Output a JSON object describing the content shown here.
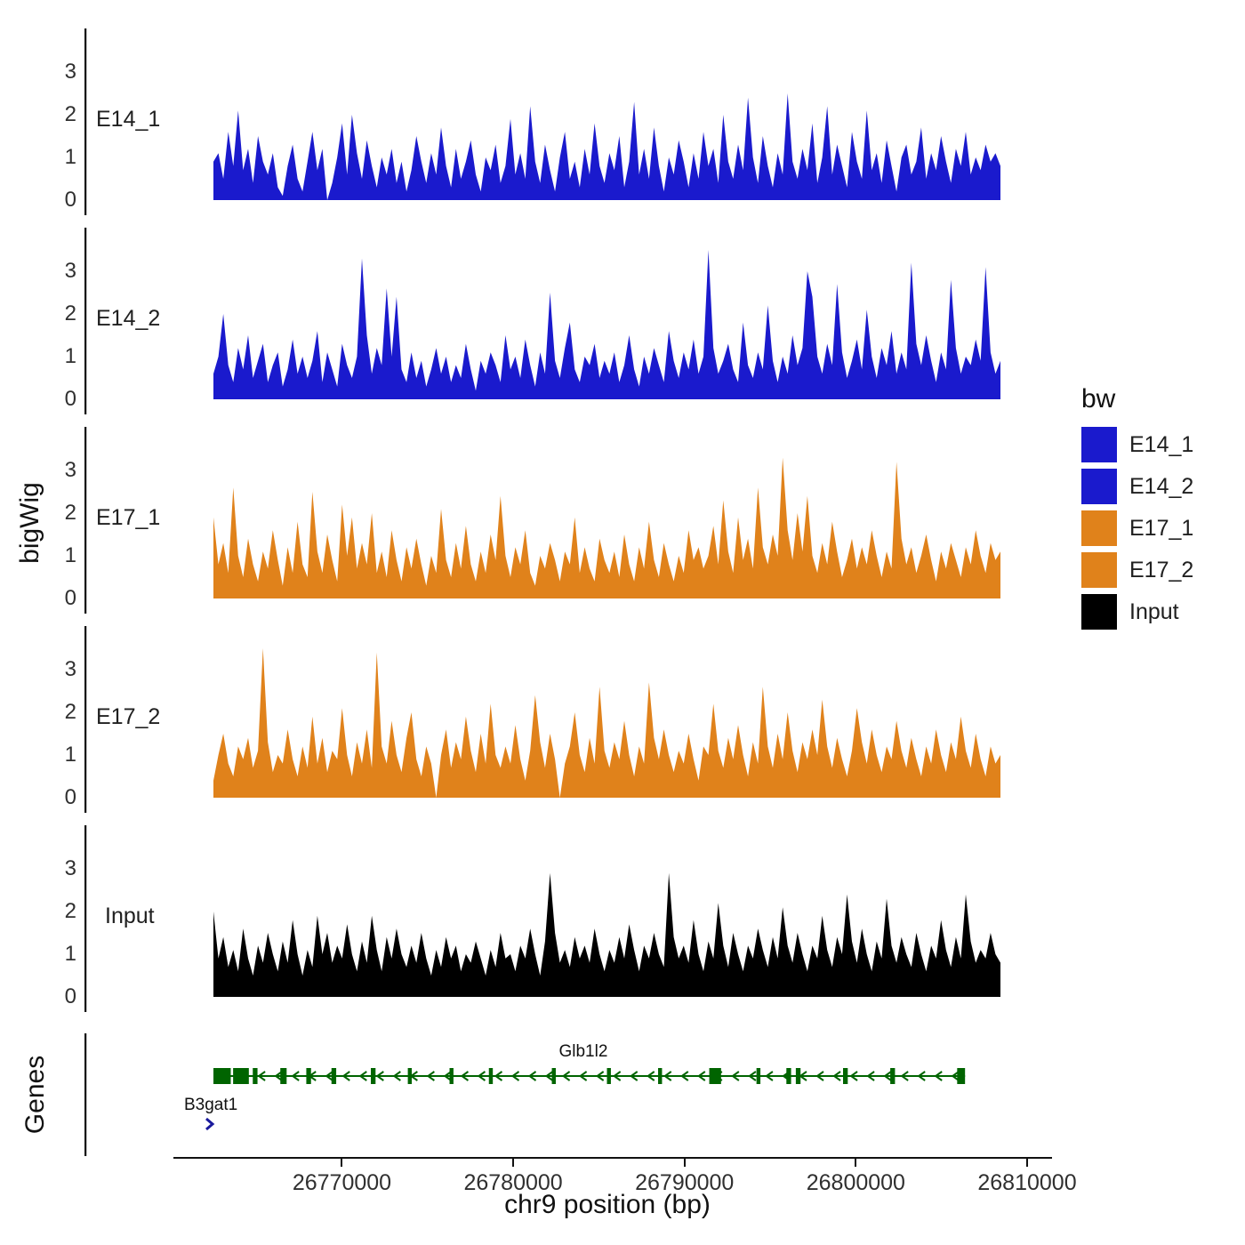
{
  "axes": {
    "y_title": "bigWig",
    "genes_title": "Genes",
    "x_title": "chr9 position (bp)"
  },
  "chart_data": {
    "type": "area",
    "title": "",
    "x_axis": {
      "label": "chr9 position (bp)",
      "bp_min": 26762500,
      "bp_max": 26810000,
      "ticks": [
        26770000,
        26780000,
        26790000,
        26800000,
        26810000
      ]
    },
    "y_axis": {
      "title": "bigWig",
      "ticks": [
        0,
        1,
        2,
        3
      ],
      "ylim": [
        0,
        3.5
      ]
    },
    "legend": {
      "title": "bw",
      "position": "right",
      "items": [
        {
          "label": "E14_1",
          "color": "#1a1acd"
        },
        {
          "label": "E14_2",
          "color": "#1a1acd"
        },
        {
          "label": "E17_1",
          "color": "#e0821b"
        },
        {
          "label": "E17_2",
          "color": "#e0821b"
        },
        {
          "label": "Input",
          "color": "#000000"
        }
      ]
    },
    "tracks": [
      {
        "name": "E14_1",
        "color": "#1a1acd",
        "values": [
          0.9,
          1.1,
          0.5,
          1.6,
          0.8,
          2.1,
          0.7,
          1.2,
          0.4,
          1.5,
          0.9,
          0.6,
          1.1,
          0.3,
          0.1,
          0.8,
          1.3,
          0.5,
          0.2,
          0.9,
          1.6,
          0.7,
          1.2,
          0.0,
          0.4,
          1.0,
          1.8,
          0.6,
          2.0,
          1.1,
          0.5,
          1.4,
          0.8,
          0.3,
          1.0,
          0.6,
          1.2,
          0.4,
          0.9,
          0.2,
          0.7,
          1.5,
          0.9,
          0.4,
          1.1,
          0.6,
          1.7,
          0.8,
          0.3,
          1.2,
          0.5,
          0.9,
          1.4,
          0.6,
          0.2,
          1.0,
          0.7,
          1.3,
          0.4,
          0.8,
          1.9,
          0.6,
          1.1,
          0.5,
          2.2,
          0.9,
          0.4,
          1.3,
          0.7,
          0.2,
          1.0,
          1.6,
          0.5,
          0.9,
          0.3,
          1.2,
          0.6,
          1.8,
          0.8,
          0.4,
          1.1,
          0.7,
          1.5,
          0.3,
          0.9,
          2.3,
          0.6,
          1.2,
          0.5,
          1.7,
          0.8,
          0.2,
          1.0,
          0.6,
          1.4,
          0.9,
          0.3,
          1.1,
          0.5,
          1.6,
          0.8,
          1.2,
          0.4,
          2.0,
          0.9,
          0.5,
          1.3,
          0.7,
          2.4,
          1.0,
          0.4,
          1.5,
          0.8,
          0.3,
          1.1,
          0.6,
          2.5,
          0.9,
          0.5,
          1.2,
          0.7,
          1.8,
          0.4,
          1.0,
          2.2,
          0.6,
          1.3,
          0.8,
          0.3,
          1.6,
          0.9,
          0.5,
          2.1,
          0.7,
          1.1,
          0.4,
          1.4,
          0.8,
          0.2,
          1.0,
          1.3,
          0.6,
          0.9,
          1.7,
          0.5,
          1.1,
          0.7,
          1.5,
          0.9,
          0.4,
          1.2,
          0.8,
          1.6,
          0.6,
          1.0,
          0.7,
          1.3,
          0.9,
          1.1,
          0.8
        ]
      },
      {
        "name": "E14_2",
        "color": "#1a1acd",
        "values": [
          0.6,
          1.0,
          2.0,
          0.8,
          0.4,
          1.2,
          0.7,
          1.5,
          0.5,
          0.9,
          1.3,
          0.4,
          0.8,
          1.1,
          0.3,
          0.7,
          1.4,
          0.6,
          1.0,
          0.5,
          0.9,
          1.6,
          0.4,
          1.1,
          0.7,
          0.3,
          1.3,
          0.8,
          0.5,
          1.0,
          3.3,
          1.5,
          0.6,
          1.2,
          0.8,
          2.6,
          1.0,
          2.4,
          0.7,
          0.4,
          1.1,
          0.5,
          0.9,
          0.3,
          0.7,
          1.2,
          0.6,
          1.0,
          0.4,
          0.8,
          0.5,
          1.3,
          0.7,
          0.2,
          0.9,
          0.6,
          1.1,
          0.8,
          0.4,
          1.5,
          0.7,
          1.0,
          0.5,
          1.4,
          0.8,
          0.3,
          1.1,
          0.6,
          2.5,
          0.9,
          0.5,
          1.2,
          1.8,
          0.7,
          0.4,
          1.0,
          0.8,
          1.3,
          0.5,
          0.9,
          0.6,
          1.1,
          0.4,
          0.8,
          1.5,
          0.7,
          0.3,
          1.0,
          0.6,
          1.2,
          0.8,
          0.4,
          1.6,
          0.9,
          0.5,
          1.1,
          0.7,
          1.4,
          0.6,
          1.0,
          3.5,
          1.2,
          0.6,
          0.9,
          1.3,
          0.7,
          0.4,
          1.8,
          0.8,
          0.5,
          1.1,
          0.7,
          2.2,
          0.9,
          0.4,
          1.0,
          0.6,
          1.5,
          0.8,
          1.2,
          3.0,
          2.4,
          1.0,
          0.6,
          1.3,
          0.8,
          2.7,
          1.1,
          0.5,
          0.9,
          1.4,
          0.7,
          2.1,
          1.0,
          0.5,
          1.2,
          0.8,
          1.6,
          0.6,
          1.1,
          0.7,
          3.2,
          1.3,
          0.8,
          1.5,
          0.9,
          0.4,
          1.1,
          0.7,
          2.8,
          1.2,
          0.6,
          1.0,
          0.8,
          1.4,
          0.9,
          3.1,
          1.1,
          0.6,
          0.9
        ]
      },
      {
        "name": "E17_1",
        "color": "#e0821b",
        "values": [
          1.9,
          0.8,
          1.3,
          0.6,
          2.6,
          1.0,
          0.5,
          1.4,
          0.8,
          0.4,
          1.1,
          0.7,
          1.6,
          0.9,
          0.3,
          1.2,
          0.6,
          1.8,
          0.8,
          0.5,
          2.5,
          1.1,
          0.6,
          1.5,
          0.9,
          0.4,
          2.2,
          1.0,
          1.9,
          0.7,
          1.3,
          0.8,
          2.0,
          0.6,
          1.1,
          0.5,
          1.6,
          0.9,
          0.4,
          1.2,
          0.7,
          1.4,
          0.8,
          0.3,
          1.0,
          0.6,
          2.1,
          0.9,
          0.5,
          1.3,
          0.7,
          1.7,
          0.8,
          0.4,
          1.1,
          0.6,
          1.5,
          0.9,
          2.4,
          1.0,
          0.5,
          1.2,
          0.8,
          1.6,
          0.6,
          0.3,
          1.0,
          0.7,
          1.3,
          0.9,
          0.4,
          1.1,
          0.8,
          1.9,
          0.6,
          1.2,
          0.7,
          0.4,
          1.4,
          0.9,
          0.6,
          1.1,
          0.5,
          1.5,
          0.8,
          0.4,
          1.2,
          0.7,
          1.8,
          0.9,
          0.5,
          1.3,
          0.8,
          0.4,
          1.0,
          0.6,
          1.6,
          0.9,
          1.2,
          0.7,
          1.0,
          1.7,
          0.8,
          2.3,
          1.1,
          0.6,
          1.9,
          0.9,
          1.4,
          0.7,
          2.6,
          1.2,
          0.8,
          1.5,
          1.0,
          3.3,
          1.6,
          0.9,
          2.0,
          1.1,
          2.4,
          1.0,
          0.6,
          1.3,
          0.8,
          1.8,
          1.1,
          0.5,
          0.9,
          1.4,
          0.7,
          1.2,
          0.8,
          1.6,
          1.0,
          0.5,
          1.1,
          0.7,
          3.2,
          1.4,
          0.8,
          1.2,
          0.6,
          1.0,
          1.5,
          0.9,
          0.4,
          1.1,
          0.7,
          1.3,
          0.9,
          0.5,
          1.2,
          0.8,
          1.6,
          1.0,
          0.6,
          1.3,
          0.9,
          1.1
        ]
      },
      {
        "name": "E17_2",
        "color": "#e0821b",
        "values": [
          0.4,
          1.0,
          1.5,
          0.8,
          0.5,
          1.2,
          0.9,
          1.4,
          0.7,
          1.1,
          3.5,
          1.3,
          0.6,
          1.0,
          0.8,
          1.6,
          0.9,
          0.5,
          1.2,
          0.7,
          1.9,
          0.8,
          1.4,
          0.6,
          1.1,
          0.9,
          2.1,
          1.0,
          0.5,
          1.3,
          0.8,
          1.6,
          0.7,
          3.4,
          1.2,
          0.8,
          1.8,
          1.0,
          0.6,
          1.4,
          2.0,
          0.9,
          0.5,
          1.2,
          0.8,
          0.0,
          1.0,
          1.6,
          0.7,
          1.3,
          0.9,
          1.9,
          1.1,
          0.6,
          1.5,
          0.8,
          2.2,
          1.0,
          0.7,
          1.2,
          0.8,
          1.7,
          0.9,
          0.4,
          1.1,
          2.4,
          1.3,
          0.7,
          1.5,
          0.9,
          0.0,
          0.8,
          1.2,
          2.0,
          1.0,
          0.6,
          1.4,
          0.8,
          2.6,
          1.1,
          0.7,
          1.3,
          0.9,
          1.8,
          1.0,
          0.5,
          1.2,
          0.8,
          2.7,
          1.4,
          0.9,
          1.6,
          1.0,
          0.6,
          1.1,
          0.8,
          1.5,
          0.9,
          0.4,
          1.2,
          1.0,
          2.2,
          1.1,
          0.7,
          1.4,
          0.9,
          1.7,
          1.0,
          0.5,
          1.3,
          0.8,
          2.6,
          1.2,
          0.7,
          1.5,
          0.9,
          2.0,
          1.1,
          0.6,
          1.3,
          0.9,
          1.6,
          1.0,
          2.3,
          1.2,
          0.7,
          1.4,
          0.9,
          0.5,
          1.1,
          2.1,
          1.3,
          0.8,
          1.6,
          1.0,
          0.6,
          1.2,
          0.9,
          1.8,
          1.1,
          0.7,
          1.4,
          0.9,
          0.5,
          1.2,
          0.8,
          1.6,
          1.0,
          0.6,
          1.3,
          0.9,
          1.9,
          1.1,
          0.7,
          1.5,
          0.9,
          0.5,
          1.2,
          0.8,
          1.0
        ]
      },
      {
        "name": "Input",
        "color": "#000000",
        "values": [
          2.0,
          0.9,
          1.4,
          0.7,
          1.1,
          0.6,
          1.6,
          0.9,
          0.5,
          1.2,
          0.8,
          1.5,
          1.0,
          0.6,
          1.3,
          0.8,
          1.8,
          1.0,
          0.5,
          1.1,
          0.7,
          1.9,
          1.0,
          1.5,
          0.8,
          1.2,
          0.9,
          1.7,
          1.0,
          0.6,
          1.3,
          0.8,
          1.9,
          1.1,
          0.6,
          1.4,
          0.9,
          1.6,
          1.0,
          0.7,
          1.2,
          0.8,
          1.5,
          0.9,
          0.5,
          1.1,
          0.7,
          1.4,
          0.9,
          1.2,
          0.6,
          1.0,
          0.8,
          1.3,
          0.9,
          0.5,
          1.1,
          0.7,
          1.5,
          0.9,
          1.0,
          0.6,
          1.2,
          0.9,
          1.6,
          1.0,
          0.5,
          1.3,
          2.9,
          1.5,
          0.8,
          1.1,
          0.7,
          1.4,
          0.9,
          1.2,
          0.8,
          1.6,
          1.0,
          0.6,
          1.1,
          0.8,
          1.4,
          0.9,
          1.7,
          1.1,
          0.6,
          1.2,
          0.9,
          1.5,
          1.0,
          0.7,
          2.9,
          1.4,
          0.9,
          1.2,
          0.8,
          1.8,
          1.0,
          0.6,
          1.3,
          0.9,
          2.2,
          1.2,
          0.7,
          1.5,
          1.0,
          0.6,
          1.2,
          0.9,
          1.6,
          1.1,
          0.7,
          1.4,
          0.9,
          2.1,
          1.2,
          0.8,
          1.5,
          1.0,
          0.6,
          1.2,
          0.9,
          1.9,
          1.1,
          0.7,
          1.4,
          1.0,
          2.4,
          1.3,
          0.8,
          1.6,
          1.0,
          0.6,
          1.3,
          0.9,
          2.3,
          1.2,
          0.8,
          1.4,
          1.0,
          0.7,
          1.5,
          1.0,
          0.6,
          1.2,
          0.9,
          1.8,
          1.1,
          0.7,
          1.4,
          0.9,
          2.4,
          1.3,
          0.8,
          1.1,
          0.9,
          1.5,
          1.0,
          0.8
        ]
      }
    ],
    "genes_track": {
      "title": "Genes",
      "genes": [
        {
          "name": "Glb1l2",
          "color": "#006400",
          "strand": "-",
          "start_frac": 0.0,
          "end_frac": 0.955,
          "label_frac": 0.47,
          "exons": [
            [
              0.0,
              0.022
            ],
            [
              0.025,
              0.045
            ],
            [
              0.05,
              0.056
            ],
            [
              0.085,
              0.093
            ],
            [
              0.118,
              0.124
            ],
            [
              0.15,
              0.156
            ],
            [
              0.2,
              0.206
            ],
            [
              0.247,
              0.252
            ],
            [
              0.3,
              0.305
            ],
            [
              0.35,
              0.355
            ],
            [
              0.43,
              0.435
            ],
            [
              0.5,
              0.505
            ],
            [
              0.565,
              0.57
            ],
            [
              0.63,
              0.645
            ],
            [
              0.69,
              0.695
            ],
            [
              0.728,
              0.734
            ],
            [
              0.74,
              0.746
            ],
            [
              0.8,
              0.806
            ],
            [
              0.86,
              0.866
            ],
            [
              0.945,
              0.955
            ]
          ]
        },
        {
          "name": "B3gat1",
          "color": "#1a1a9c",
          "strand": "+",
          "start_frac": -0.01,
          "end_frac": 0.0,
          "label_frac": -0.035,
          "exons": []
        }
      ]
    }
  }
}
